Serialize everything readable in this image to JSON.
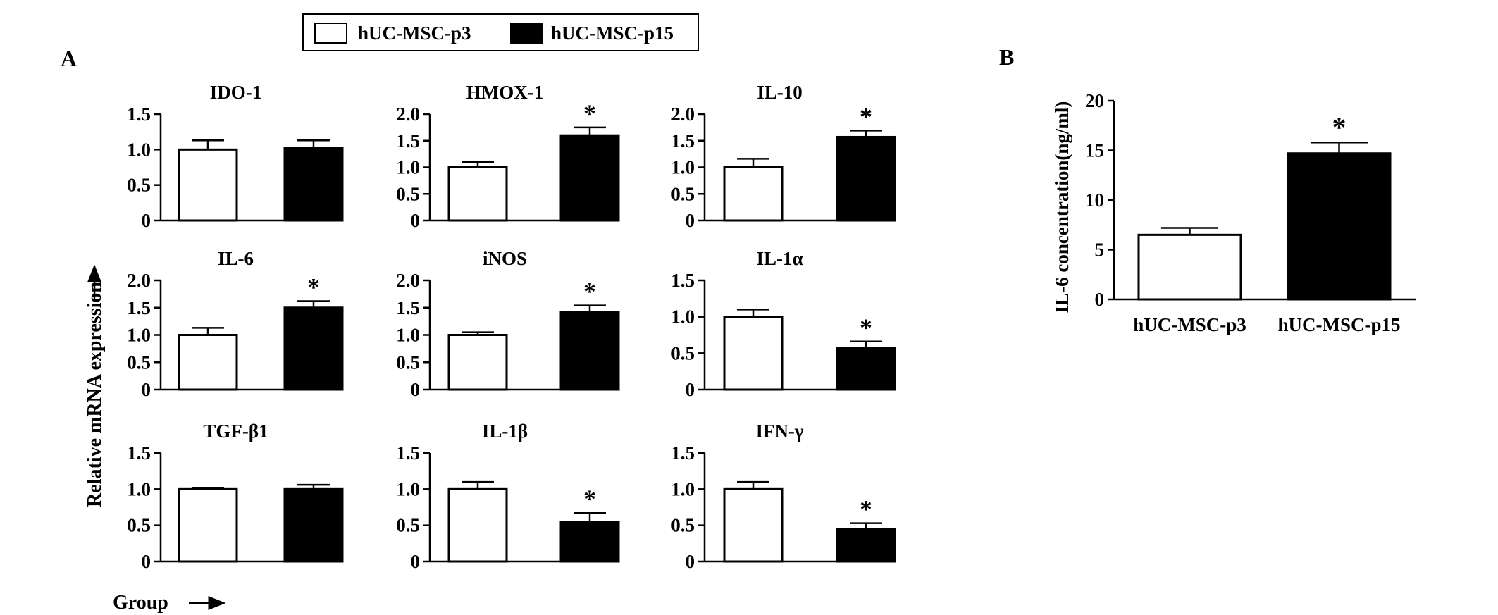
{
  "figure": {
    "panel_a_label": "A",
    "panel_b_label": "B",
    "y_axis_label": "Relative mRNA expression",
    "x_axis_label": "Group",
    "legend": [
      {
        "label": "hUC-MSC-p3",
        "fill": "#ffffff"
      },
      {
        "label": "hUC-MSC-p15",
        "fill": "#000000"
      }
    ],
    "significance_marker": "*"
  },
  "chart_data": [
    {
      "panel": "A",
      "type": "bar",
      "title": "IDO-1",
      "categories": [
        "hUC-MSC-p3",
        "hUC-MSC-p15"
      ],
      "values": [
        1.0,
        1.02
      ],
      "errors": [
        0.13,
        0.11
      ],
      "significant": [
        false,
        false
      ],
      "ylim": [
        0,
        1.5
      ],
      "yticks": [
        "0",
        "0.5",
        "1.0",
        "1.5"
      ]
    },
    {
      "panel": "A",
      "type": "bar",
      "title": "HMOX-1",
      "categories": [
        "hUC-MSC-p3",
        "hUC-MSC-p15"
      ],
      "values": [
        1.0,
        1.6
      ],
      "errors": [
        0.1,
        0.15
      ],
      "significant": [
        false,
        true
      ],
      "ylim": [
        0,
        2.0
      ],
      "yticks": [
        "0",
        "0.5",
        "1.0",
        "1.5",
        "2.0"
      ]
    },
    {
      "panel": "A",
      "type": "bar",
      "title": "IL-10",
      "categories": [
        "hUC-MSC-p3",
        "hUC-MSC-p15"
      ],
      "values": [
        1.0,
        1.57
      ],
      "errors": [
        0.16,
        0.12
      ],
      "significant": [
        false,
        true
      ],
      "ylim": [
        0,
        2.0
      ],
      "yticks": [
        "0",
        "0.5",
        "1.0",
        "1.5",
        "2.0"
      ]
    },
    {
      "panel": "A",
      "type": "bar",
      "title": "IL-6",
      "categories": [
        "hUC-MSC-p3",
        "hUC-MSC-p15"
      ],
      "values": [
        1.0,
        1.5
      ],
      "errors": [
        0.13,
        0.12
      ],
      "significant": [
        false,
        true
      ],
      "ylim": [
        0,
        2.0
      ],
      "yticks": [
        "0",
        "0.5",
        "1.0",
        "1.5",
        "2.0"
      ]
    },
    {
      "panel": "A",
      "type": "bar",
      "title": "iNOS",
      "categories": [
        "hUC-MSC-p3",
        "hUC-MSC-p15"
      ],
      "values": [
        1.0,
        1.42
      ],
      "errors": [
        0.05,
        0.12
      ],
      "significant": [
        false,
        true
      ],
      "ylim": [
        0,
        2.0
      ],
      "yticks": [
        "0",
        "0.5",
        "1.0",
        "1.5",
        "2.0"
      ]
    },
    {
      "panel": "A",
      "type": "bar",
      "title": "IL-1α",
      "categories": [
        "hUC-MSC-p3",
        "hUC-MSC-p15"
      ],
      "values": [
        1.0,
        0.57
      ],
      "errors": [
        0.1,
        0.09
      ],
      "significant": [
        false,
        true
      ],
      "ylim": [
        0,
        1.5
      ],
      "yticks": [
        "0",
        "0.5",
        "1.0",
        "1.5"
      ]
    },
    {
      "panel": "A",
      "type": "bar",
      "title": "TGF-β1",
      "categories": [
        "hUC-MSC-p3",
        "hUC-MSC-p15"
      ],
      "values": [
        1.0,
        1.0
      ],
      "errors": [
        0.02,
        0.06
      ],
      "significant": [
        false,
        false
      ],
      "ylim": [
        0,
        1.5
      ],
      "yticks": [
        "0",
        "0.5",
        "1.0",
        "1.5"
      ]
    },
    {
      "panel": "A",
      "type": "bar",
      "title": "IL-1β",
      "categories": [
        "hUC-MSC-p3",
        "hUC-MSC-p15"
      ],
      "values": [
        1.0,
        0.55
      ],
      "errors": [
        0.1,
        0.12
      ],
      "significant": [
        false,
        true
      ],
      "ylim": [
        0,
        1.5
      ],
      "yticks": [
        "0",
        "0.5",
        "1.0",
        "1.5"
      ]
    },
    {
      "panel": "A",
      "type": "bar",
      "title": "IFN-γ",
      "categories": [
        "hUC-MSC-p3",
        "hUC-MSC-p15"
      ],
      "values": [
        1.0,
        0.45
      ],
      "errors": [
        0.1,
        0.08
      ],
      "significant": [
        false,
        true
      ],
      "ylim": [
        0,
        1.5
      ],
      "yticks": [
        "0",
        "0.5",
        "1.0",
        "1.5"
      ]
    },
    {
      "panel": "B",
      "type": "bar",
      "title": "",
      "ylabel": "IL-6 concentration(ng/ml)",
      "categories": [
        "hUC-MSC-p3",
        "hUC-MSC-p15"
      ],
      "values": [
        6.5,
        14.7
      ],
      "errors": [
        0.7,
        1.1
      ],
      "significant": [
        false,
        true
      ],
      "ylim": [
        0,
        20
      ],
      "yticks": [
        "0",
        "5",
        "10",
        "15",
        "20"
      ]
    }
  ]
}
